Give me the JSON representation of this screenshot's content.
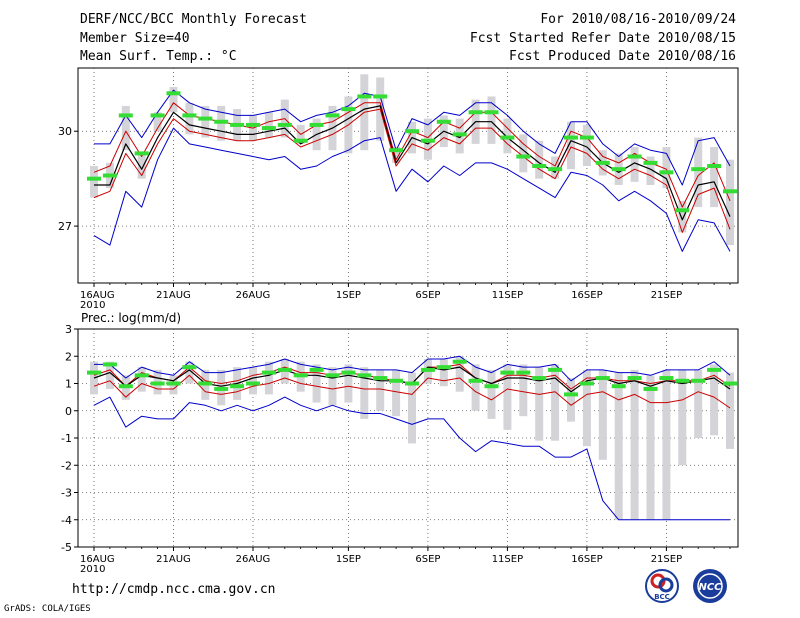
{
  "header": {
    "title": "DERF/NCC/BCC Monthly Forecast",
    "member_size": "Member Size=40",
    "variable": "Mean Surf. Temp.: °C",
    "period": "For 2010/08/16-2010/09/24",
    "started": "Fcst Started Refer Date 2010/08/15",
    "produced": "Fcst Produced Date 2010/08/16"
  },
  "footer": {
    "url": "http://cmdp.ncc.cma.gov.cn",
    "credit": "GrADS: COLA/IGES",
    "logo_left_text": "BCC",
    "logo_right_text": "NCC"
  },
  "colors": {
    "max_min": "#0000cc",
    "mean": "#000000",
    "upper_band": "#cc0000",
    "lower_band": "#cc0000",
    "observed_marker": "#33dd33",
    "spread_box": "#d4d4d8"
  },
  "chart_data": [
    {
      "type": "line",
      "name": "temperature",
      "title": "Mean Surf. Temp.: °C",
      "ylabel": "°C",
      "ylim": [
        25.2,
        32.0
      ],
      "yticks": [
        27,
        30
      ],
      "ytick_labels": [
        "27",
        "30"
      ],
      "xticks": [
        0,
        5,
        10,
        16,
        21,
        26,
        31,
        36
      ],
      "xtick_labels": [
        "16AUG\n2010",
        "21AUG",
        "26AUG",
        "1SEP",
        "6SEP",
        "11SEP",
        "16SEP",
        "21SEP"
      ],
      "grid": true,
      "series": [
        {
          "name": "max",
          "style": "blue",
          "values": [
            29.6,
            29.6,
            30.5,
            29.8,
            30.6,
            31.3,
            30.9,
            30.7,
            30.6,
            30.5,
            30.5,
            30.6,
            30.7,
            30.3,
            30.5,
            30.6,
            30.8,
            31.2,
            31.1,
            29.4,
            30.4,
            30.2,
            30.6,
            30.5,
            30.9,
            30.9,
            30.5,
            30.0,
            29.6,
            29.3,
            30.3,
            30.3,
            29.6,
            29.2,
            29.6,
            29.4,
            29.3,
            28.3,
            29.7,
            29.8,
            28.9
          ]
        },
        {
          "name": "upper",
          "style": "red",
          "values": [
            28.7,
            28.9,
            30.0,
            29.2,
            30.1,
            30.9,
            30.5,
            30.4,
            30.3,
            30.2,
            30.1,
            30.3,
            30.4,
            29.9,
            30.2,
            30.3,
            30.6,
            30.9,
            30.9,
            29.1,
            30.0,
            29.8,
            30.3,
            30.1,
            30.6,
            30.6,
            30.1,
            29.6,
            29.2,
            28.9,
            30.0,
            29.8,
            29.2,
            29.0,
            29.3,
            29.0,
            28.8,
            27.6,
            28.6,
            29.0,
            27.8
          ]
        },
        {
          "name": "mean",
          "style": "black",
          "values": [
            28.3,
            28.3,
            29.6,
            28.8,
            29.8,
            30.6,
            30.2,
            30.1,
            30.0,
            29.9,
            29.9,
            30.0,
            30.1,
            29.6,
            29.9,
            30.1,
            30.4,
            30.7,
            30.8,
            29.0,
            29.8,
            29.6,
            30.0,
            29.8,
            30.3,
            30.3,
            29.8,
            29.4,
            29.0,
            28.7,
            29.7,
            29.5,
            29.0,
            28.7,
            29.0,
            28.8,
            28.5,
            27.2,
            28.3,
            28.4,
            27.3
          ]
        },
        {
          "name": "lower",
          "style": "red",
          "values": [
            27.9,
            28.1,
            29.3,
            28.6,
            29.6,
            30.4,
            30.0,
            29.9,
            29.8,
            29.7,
            29.7,
            29.8,
            29.9,
            29.5,
            29.7,
            29.9,
            30.2,
            30.6,
            30.7,
            28.9,
            29.6,
            29.4,
            29.8,
            29.6,
            30.1,
            30.1,
            29.6,
            29.2,
            28.8,
            28.5,
            29.5,
            29.3,
            28.8,
            28.5,
            28.8,
            28.6,
            28.3,
            26.8,
            28.0,
            28.2,
            26.9
          ]
        },
        {
          "name": "min",
          "style": "blue",
          "values": [
            26.7,
            26.4,
            28.1,
            27.6,
            29.1,
            30.1,
            29.6,
            29.5,
            29.4,
            29.3,
            29.2,
            29.1,
            29.2,
            28.8,
            28.9,
            29.2,
            29.4,
            29.7,
            29.8,
            28.1,
            28.8,
            28.4,
            28.9,
            28.6,
            29.0,
            29.0,
            28.8,
            28.5,
            28.2,
            27.9,
            28.7,
            28.6,
            28.3,
            27.8,
            28.1,
            27.8,
            27.4,
            26.2,
            27.2,
            27.1,
            26.2
          ]
        },
        {
          "name": "observed",
          "style": "green-dash",
          "values": [
            28.5,
            28.6,
            30.5,
            29.3,
            30.5,
            31.2,
            30.5,
            30.4,
            30.3,
            30.2,
            30.2,
            30.1,
            30.2,
            29.7,
            30.2,
            30.5,
            30.7,
            31.1,
            31.1,
            29.4,
            30.0,
            29.7,
            30.3,
            29.9,
            30.6,
            30.6,
            29.8,
            29.2,
            28.9,
            28.8,
            29.8,
            29.8,
            29.0,
            28.8,
            29.2,
            29.0,
            28.7,
            27.5,
            28.8,
            28.9,
            28.1
          ]
        }
      ],
      "spread_boxes": {
        "high": [
          28.9,
          29.0,
          30.8,
          29.3,
          30.6,
          31.4,
          30.9,
          30.8,
          30.8,
          30.7,
          30.5,
          30.6,
          31.0,
          30.2,
          30.4,
          30.8,
          31.1,
          31.8,
          31.7,
          29.5,
          30.3,
          30.4,
          30.5,
          30.4,
          31.0,
          31.1,
          30.4,
          29.9,
          29.7,
          29.2,
          30.3,
          30.2,
          29.4,
          29.3,
          29.5,
          29.2,
          29.5,
          27.8,
          29.8,
          29.5,
          29.1
        ],
        "low": [
          27.9,
          28.2,
          29.4,
          28.5,
          30.0,
          30.6,
          29.9,
          29.8,
          29.7,
          29.7,
          29.7,
          29.8,
          29.8,
          29.6,
          29.4,
          29.4,
          29.3,
          29.4,
          29.7,
          29.0,
          29.3,
          29.1,
          29.5,
          29.3,
          29.6,
          29.6,
          29.3,
          28.7,
          28.5,
          28.5,
          28.8,
          28.9,
          28.6,
          28.3,
          28.4,
          28.3,
          28.2,
          26.8,
          27.6,
          27.6,
          26.4
        ]
      }
    },
    {
      "type": "line",
      "name": "precipitation",
      "title": "Prec.: log(mm/d)",
      "ylabel": "log(mm/d)",
      "ylim": [
        -5,
        3
      ],
      "yticks": [
        -5,
        -4,
        -3,
        -2,
        -1,
        0,
        1,
        2,
        3
      ],
      "ytick_labels": [
        "-5",
        "-4",
        "-3",
        "-2",
        "-1",
        "0",
        "1",
        "2",
        "3"
      ],
      "xticks": [
        0,
        5,
        10,
        16,
        21,
        26,
        31,
        36
      ],
      "xtick_labels": [
        "16AUG\n2010",
        "21AUG",
        "26AUG",
        "1SEP",
        "6SEP",
        "11SEP",
        "16SEP",
        "21SEP"
      ],
      "grid": true,
      "series": [
        {
          "name": "max",
          "style": "blue",
          "values": [
            1.7,
            1.7,
            1.2,
            1.6,
            1.4,
            1.3,
            1.8,
            1.4,
            1.4,
            1.5,
            1.6,
            1.7,
            1.9,
            1.7,
            1.6,
            1.5,
            1.6,
            1.5,
            1.5,
            1.5,
            1.4,
            1.9,
            1.9,
            2.0,
            1.6,
            1.4,
            1.7,
            1.6,
            1.6,
            1.7,
            1.1,
            1.5,
            1.5,
            1.4,
            1.4,
            1.3,
            1.5,
            1.5,
            1.5,
            1.8,
            1.3
          ]
        },
        {
          "name": "upper",
          "style": "red",
          "values": [
            1.3,
            1.5,
            0.9,
            1.4,
            1.2,
            1.1,
            1.6,
            1.1,
            1.0,
            1.1,
            1.3,
            1.4,
            1.6,
            1.4,
            1.4,
            1.3,
            1.4,
            1.3,
            1.2,
            1.1,
            1.0,
            1.6,
            1.6,
            1.7,
            1.2,
            1.0,
            1.3,
            1.3,
            1.2,
            1.3,
            0.8,
            1.2,
            1.2,
            1.1,
            1.1,
            1.0,
            1.1,
            1.1,
            1.1,
            1.3,
            0.9
          ]
        },
        {
          "name": "mean",
          "style": "black",
          "values": [
            1.2,
            1.4,
            0.9,
            1.3,
            1.2,
            1.1,
            1.5,
            1.0,
            0.9,
            1.0,
            1.2,
            1.3,
            1.5,
            1.3,
            1.3,
            1.2,
            1.3,
            1.2,
            1.1,
            1.1,
            1.0,
            1.6,
            1.5,
            1.6,
            1.2,
            1.0,
            1.2,
            1.2,
            1.1,
            1.2,
            0.7,
            1.1,
            1.2,
            1.0,
            1.1,
            0.9,
            1.1,
            1.0,
            1.1,
            1.2,
            0.8
          ]
        },
        {
          "name": "lower",
          "style": "red",
          "values": [
            0.9,
            1.1,
            0.5,
            1.0,
            0.8,
            0.8,
            1.3,
            0.7,
            0.6,
            0.7,
            0.9,
            1.0,
            1.2,
            1.0,
            0.9,
            0.8,
            0.9,
            0.8,
            0.8,
            0.7,
            0.6,
            1.2,
            1.1,
            1.2,
            0.7,
            0.4,
            0.8,
            0.7,
            0.6,
            0.7,
            0.2,
            0.6,
            0.7,
            0.4,
            0.6,
            0.3,
            0.3,
            0.4,
            0.7,
            0.5,
            0.1
          ]
        },
        {
          "name": "min",
          "style": "blue",
          "values": [
            0.2,
            0.5,
            -0.6,
            -0.2,
            -0.3,
            -0.3,
            0.3,
            0.2,
            0.0,
            0.2,
            0.0,
            0.2,
            0.5,
            0.2,
            0.0,
            0.2,
            0.0,
            -0.1,
            -0.1,
            -0.3,
            -0.5,
            -0.3,
            -0.3,
            -1.0,
            -1.5,
            -1.1,
            -1.2,
            -1.3,
            -1.3,
            -1.7,
            -1.7,
            -1.4,
            -3.3,
            -4.0,
            -4.0,
            -4.0,
            -4.0,
            -4.0,
            -4.0,
            -4.0,
            -4.0
          ]
        },
        {
          "name": "observed",
          "style": "green-dash",
          "values": [
            1.4,
            1.7,
            0.9,
            1.3,
            1.0,
            1.0,
            1.6,
            1.0,
            0.8,
            0.9,
            1.0,
            1.4,
            1.5,
            1.3,
            1.5,
            1.3,
            1.4,
            1.3,
            1.2,
            1.1,
            1.0,
            1.5,
            1.6,
            1.8,
            1.1,
            0.9,
            1.4,
            1.4,
            1.2,
            1.5,
            0.6,
            1.0,
            1.2,
            0.9,
            1.2,
            0.8,
            1.2,
            1.1,
            1.1,
            1.5,
            1.0
          ]
        }
      ],
      "spread_boxes": {
        "high": [
          1.8,
          1.8,
          1.3,
          1.6,
          1.5,
          1.3,
          1.8,
          1.5,
          1.5,
          1.6,
          1.6,
          1.8,
          1.9,
          1.8,
          1.7,
          1.6,
          1.7,
          1.6,
          1.5,
          1.5,
          1.4,
          1.9,
          1.9,
          2.0,
          1.7,
          1.5,
          1.7,
          1.7,
          1.6,
          1.7,
          1.2,
          1.5,
          1.5,
          1.4,
          1.5,
          1.3,
          1.5,
          1.5,
          1.5,
          1.7,
          1.4
        ],
        "low": [
          0.6,
          0.8,
          0.4,
          0.7,
          0.6,
          0.6,
          1.0,
          0.4,
          0.2,
          0.4,
          0.6,
          0.6,
          1.0,
          0.7,
          0.3,
          0.2,
          0.3,
          -0.3,
          0.0,
          -0.2,
          -1.2,
          1.0,
          0.9,
          0.7,
          0.0,
          -0.3,
          -0.7,
          -0.2,
          -1.1,
          -1.1,
          -0.4,
          -1.3,
          -1.8,
          -4.0,
          -4.0,
          -4.0,
          -4.0,
          -2.0,
          -1.0,
          -0.9,
          -1.4
        ]
      }
    }
  ]
}
